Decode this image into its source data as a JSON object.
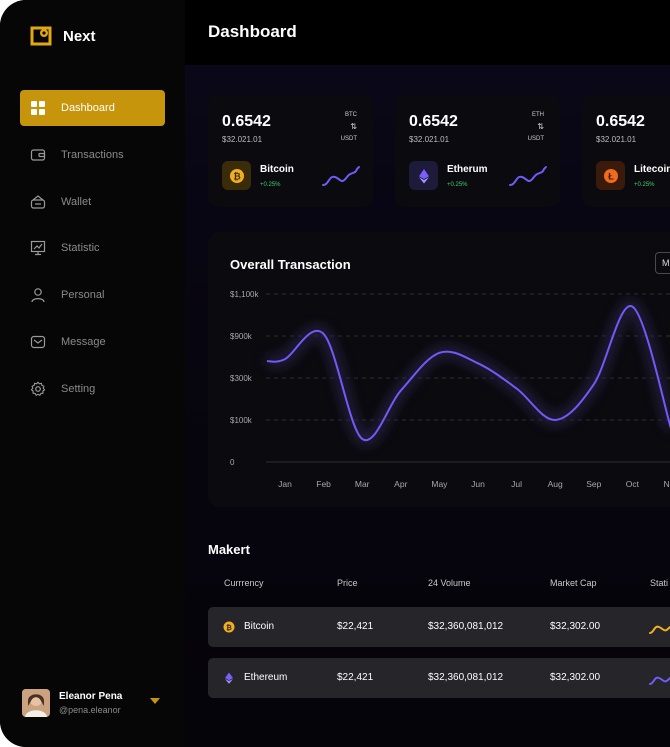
{
  "app": {
    "name": "Next"
  },
  "sidebar": {
    "items": [
      {
        "label": "Dashboard",
        "icon": "grid-icon",
        "active": true
      },
      {
        "label": "Transactions",
        "icon": "card-icon",
        "active": false
      },
      {
        "label": "Wallet",
        "icon": "wallet-icon",
        "active": false
      },
      {
        "label": "Statistic",
        "icon": "presentation-chart-icon",
        "active": false
      },
      {
        "label": "Personal",
        "icon": "user-icon",
        "active": false
      },
      {
        "label": "Message",
        "icon": "mail-icon",
        "active": false
      },
      {
        "label": "Setting",
        "icon": "gear-icon",
        "active": false
      }
    ]
  },
  "user": {
    "name": "Eleanor Pena",
    "handle": "@pena.eleanor"
  },
  "header": {
    "title": "Dashboard"
  },
  "tickers": [
    {
      "price": "0.6542",
      "usd": "$32.021.01",
      "pair_top": "BTC",
      "swap": "⇅",
      "pair_bottom": "USDT",
      "coin": "Bitcoin",
      "change": "+0.25%",
      "color": "#f2b01e",
      "icon_bg": "#3a2c08"
    },
    {
      "price": "0.6542",
      "usd": "$32.021.01",
      "pair_top": "ETH",
      "swap": "⇅",
      "pair_bottom": "USDT",
      "coin": "Etherum",
      "change": "+0.25%",
      "color": "#7c5cff",
      "icon_bg": "#1d1a3a"
    },
    {
      "price": "0.6542",
      "usd": "$32.021.01",
      "pair_top": "",
      "swap": "",
      "pair_bottom": "",
      "coin": "Litecoin",
      "change": "+0.25%",
      "color": "#f26b1d",
      "icon_bg": "#3a1a0a"
    }
  ],
  "overview": {
    "title": "Overall Transaction",
    "select_value": "M"
  },
  "chart_data": {
    "type": "line",
    "title": "Overall Transaction",
    "categories": [
      "Jan",
      "Feb",
      "Mar",
      "Apr",
      "May",
      "Jun",
      "Jul",
      "Aug",
      "Sep",
      "Oct",
      "Nov"
    ],
    "y_tick_labels": [
      "$1,100k",
      "$900k",
      "$300k",
      "$100k",
      "0"
    ],
    "series": [
      {
        "name": "",
        "values_in_tick_scale": [
          2.45,
          3.05,
          0.55,
          1.7,
          2.6,
          2.35,
          1.75,
          1.0,
          1.85,
          3.7,
          0.8
        ]
      }
    ],
    "note_values": "values expressed on the chart's evenly spaced tick scale (0=0, 1=$100k, 2=$300k, 3=$900k, 4=$1,100k)",
    "grid": true,
    "color": "#6e5cf5"
  },
  "market": {
    "title": "Makert",
    "headers": [
      "Currrency",
      "Price",
      "24 Volume",
      "Market Cap",
      "Stati"
    ],
    "rows": [
      {
        "currency": "Bitcoin",
        "price": "$22,421",
        "volume": "$32,360,081,012",
        "cap": "$32,302.00",
        "color": "#f2b01e",
        "spark_color": "#f2b01e"
      },
      {
        "currency": "Ethereum",
        "price": "$22,421",
        "volume": "$32,360,081,012",
        "cap": "$32,302.00",
        "color": "#7c5cff",
        "spark_color": "#6e5cf5"
      }
    ]
  }
}
